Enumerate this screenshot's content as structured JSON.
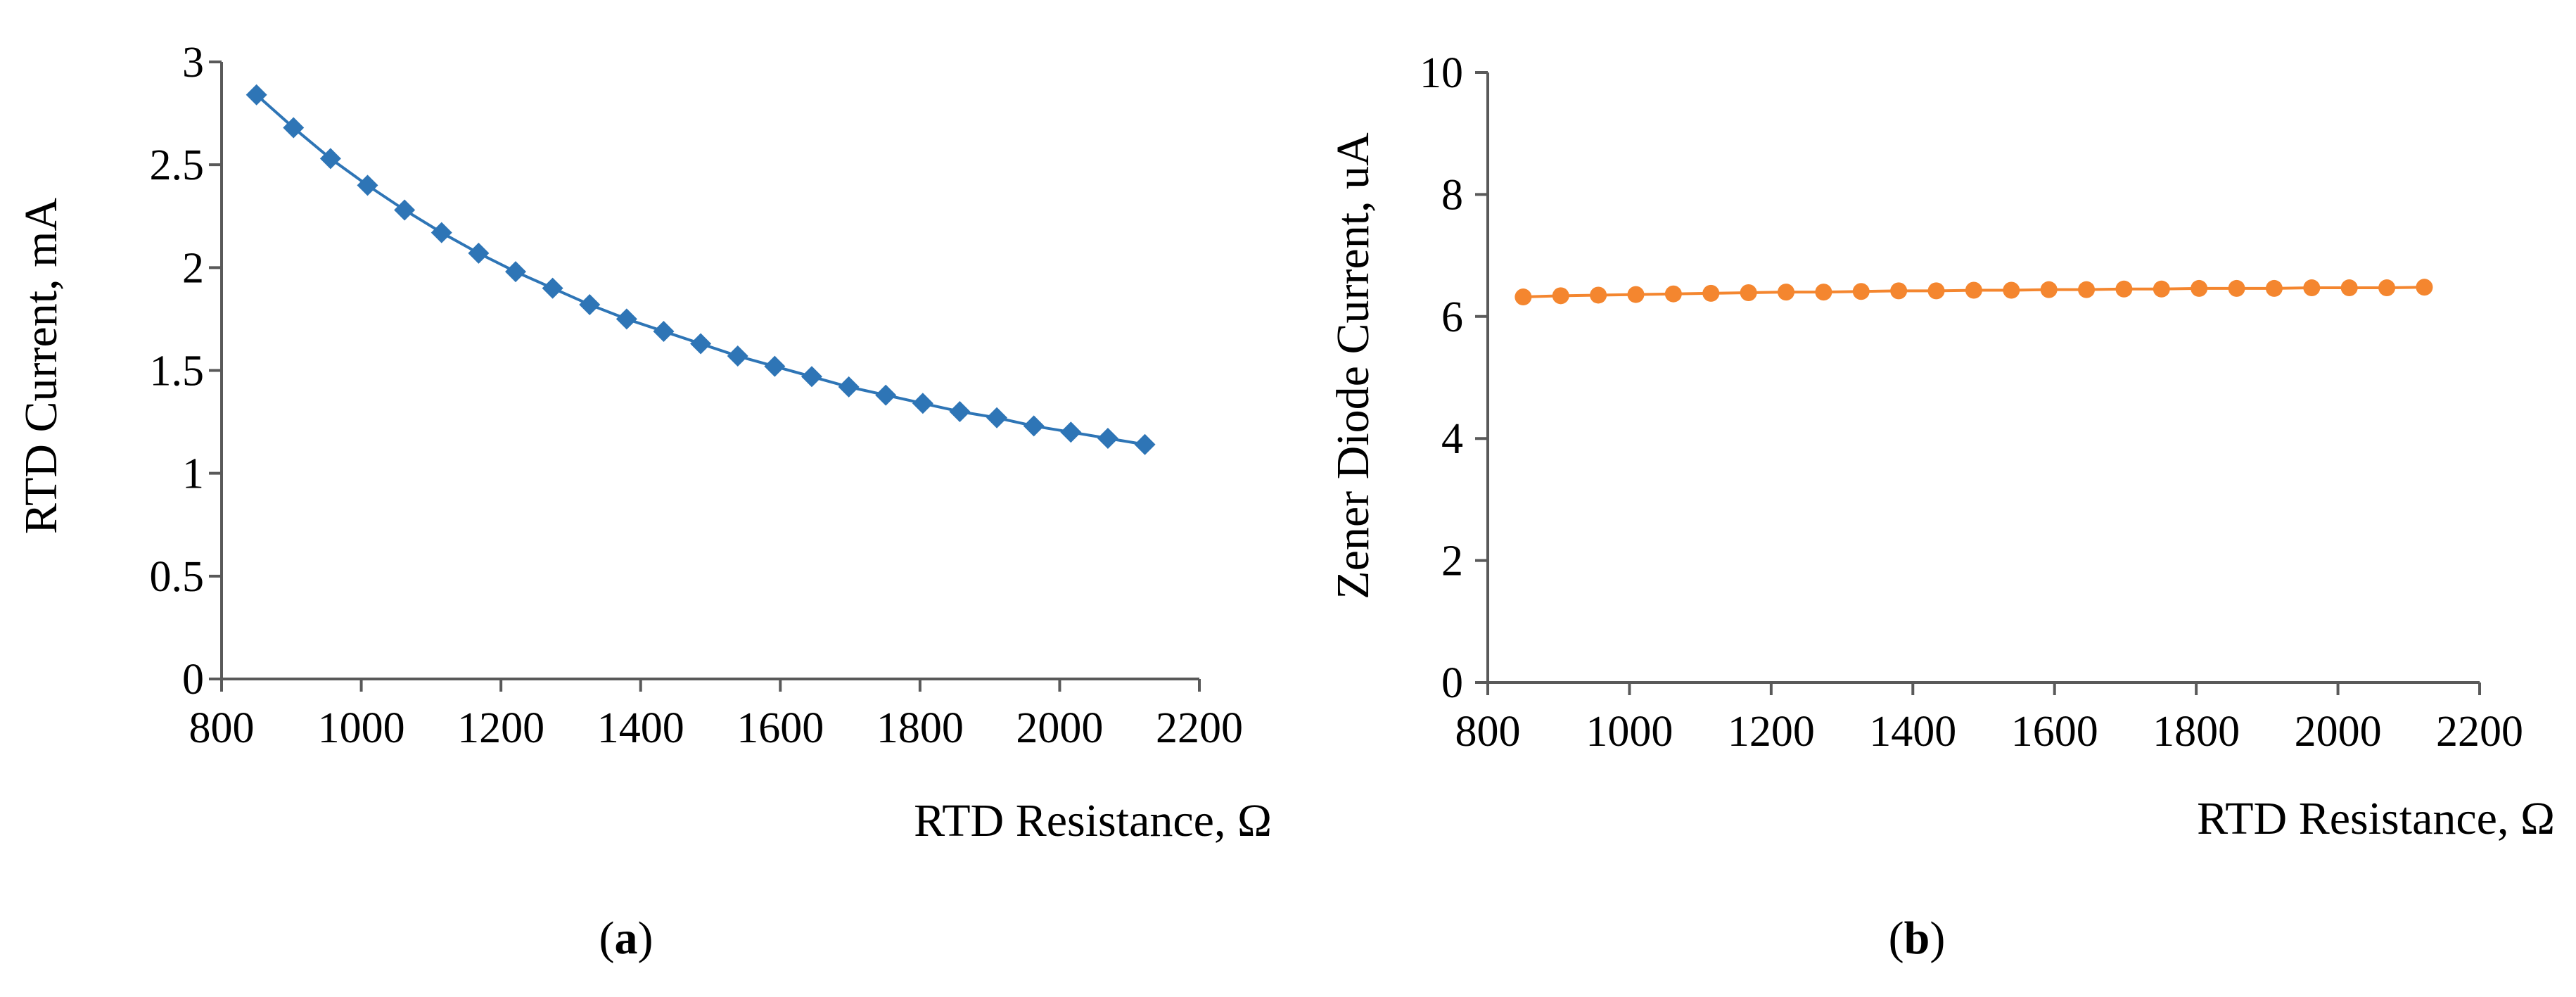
{
  "chart_data": [
    {
      "id": "a",
      "type": "line",
      "caption": "a",
      "xlabel": "RTD Resistance, Ω",
      "ylabel": "RTD Current, mA",
      "xlim": [
        800,
        2200
      ],
      "ylim": [
        0,
        3
      ],
      "xticks": [
        800,
        1000,
        1200,
        1400,
        1600,
        1800,
        2000,
        2200
      ],
      "xtick_labels": [
        "800",
        "1000",
        "1200",
        "1400",
        "1600",
        "1800",
        "2000",
        "2200"
      ],
      "yticks": [
        0,
        0.5,
        1,
        1.5,
        2,
        2.5,
        3
      ],
      "ytick_labels": [
        "0",
        "0.5",
        "1",
        "1.5",
        "2",
        "2.5",
        "3"
      ],
      "grid": false,
      "series": [
        {
          "name": "RTD Current",
          "color": "#2e75b6",
          "marker": "diamond",
          "x": [
            850,
            903,
            956,
            1009,
            1062,
            1115,
            1168,
            1221,
            1274,
            1327,
            1380,
            1433,
            1486,
            1539,
            1592,
            1645,
            1698,
            1751,
            1804,
            1857,
            1910,
            1963,
            2016,
            2069,
            2122
          ],
          "y": [
            2.84,
            2.68,
            2.53,
            2.4,
            2.28,
            2.17,
            2.07,
            1.98,
            1.9,
            1.82,
            1.75,
            1.69,
            1.63,
            1.57,
            1.52,
            1.47,
            1.42,
            1.38,
            1.34,
            1.3,
            1.27,
            1.23,
            1.2,
            1.17,
            1.14
          ]
        }
      ]
    },
    {
      "id": "b",
      "type": "line",
      "caption": "b",
      "xlabel": "RTD Resistance, Ω",
      "ylabel": "Zener Diode Current, uA",
      "xlim": [
        800,
        2200
      ],
      "ylim": [
        0,
        10
      ],
      "xticks": [
        800,
        1000,
        1200,
        1400,
        1600,
        1800,
        2000,
        2200
      ],
      "xtick_labels": [
        "800",
        "1000",
        "1200",
        "1400",
        "1600",
        "1800",
        "2000",
        "2200"
      ],
      "yticks": [
        0,
        2,
        4,
        6,
        8,
        10
      ],
      "ytick_labels": [
        "0",
        "2",
        "4",
        "6",
        "8",
        "10"
      ],
      "grid": false,
      "series": [
        {
          "name": "Zener Diode Current",
          "color": "#f4862f",
          "marker": "circle",
          "x": [
            850,
            903,
            956,
            1009,
            1062,
            1115,
            1168,
            1221,
            1274,
            1327,
            1380,
            1433,
            1486,
            1539,
            1592,
            1645,
            1698,
            1751,
            1804,
            1857,
            1910,
            1963,
            2016,
            2069,
            2122
          ],
          "y": [
            6.32,
            6.34,
            6.35,
            6.36,
            6.37,
            6.38,
            6.39,
            6.4,
            6.4,
            6.41,
            6.42,
            6.42,
            6.43,
            6.43,
            6.44,
            6.44,
            6.45,
            6.45,
            6.46,
            6.46,
            6.46,
            6.47,
            6.47,
            6.47,
            6.48
          ]
        }
      ]
    }
  ]
}
